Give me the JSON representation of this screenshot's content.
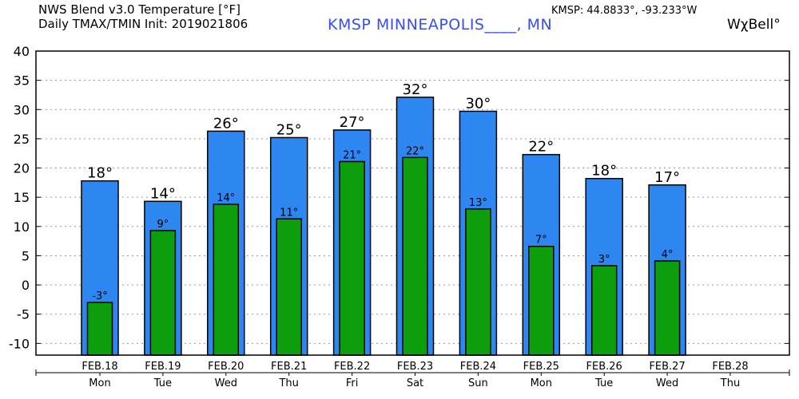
{
  "header": {
    "line1": "NWS Blend v3.0 Temperature [°F]",
    "line2": "Daily TMAX/TMIN Init: 2019021806",
    "station": "KMSP MINNEAPOLIS____, MN",
    "coords": "KMSP: 44.8833°, -93.233°W",
    "brand": "WχBell°"
  },
  "colors": {
    "tmax": "#2e86f0",
    "tmin": "#0d9e0d"
  },
  "chart_data": {
    "type": "bar",
    "title": "NWS Blend v3.0 Temperature [°F]",
    "ylim": [
      -12,
      40
    ],
    "yticks": [
      40,
      35,
      30,
      25,
      20,
      15,
      10,
      5,
      0,
      -5,
      -10
    ],
    "grid": true,
    "categories": [
      "FEB.18",
      "FEB.19",
      "FEB.20",
      "FEB.21",
      "FEB.22",
      "FEB.23",
      "FEB.24",
      "FEB.25",
      "FEB.26",
      "FEB.27",
      "FEB.28"
    ],
    "weekdays": [
      "Mon",
      "Tue",
      "Wed",
      "Thu",
      "Fri",
      "Sat",
      "Sun",
      "Mon",
      "Tue",
      "Wed",
      "Thu"
    ],
    "series": [
      {
        "name": "TMAX",
        "values": [
          17.8,
          14.3,
          26.3,
          25.2,
          26.5,
          32.1,
          29.7,
          22.3,
          18.2,
          17.1,
          null
        ],
        "labels": [
          "18°",
          "14°",
          "26°",
          "25°",
          "27°",
          "32°",
          "30°",
          "22°",
          "18°",
          "17°",
          ""
        ]
      },
      {
        "name": "TMIN",
        "values": [
          -3.0,
          9.3,
          13.8,
          11.3,
          21.1,
          21.8,
          13.0,
          6.6,
          3.3,
          4.1,
          null
        ],
        "labels": [
          "-3°",
          "9°",
          "14°",
          "11°",
          "21°",
          "22°",
          "13°",
          "7°",
          "3°",
          "4°",
          ""
        ]
      }
    ]
  }
}
